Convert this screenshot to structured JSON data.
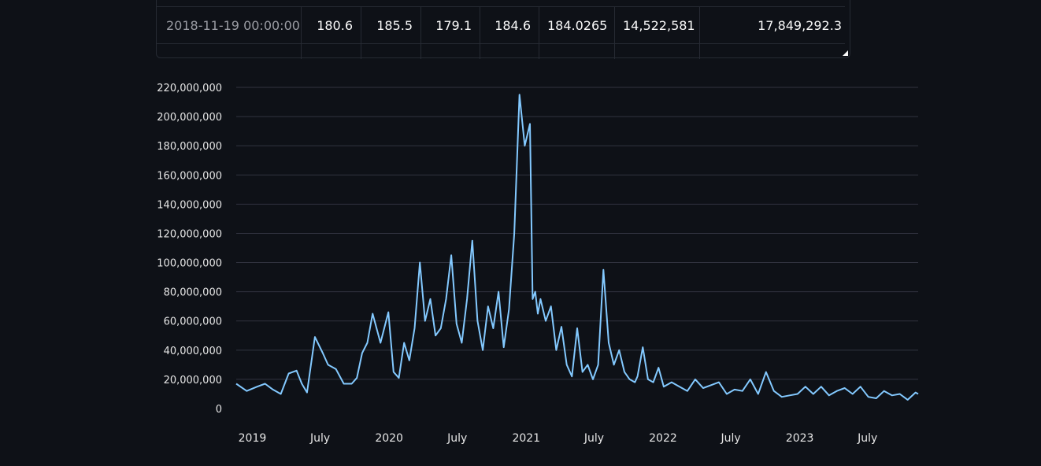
{
  "table": {
    "row": {
      "index": "2018-11-19 00:00:00",
      "cells": [
        "180.6",
        "185.5",
        "179.1",
        "184.6",
        "184.0265",
        "14,522,581",
        "17,849,292.3"
      ]
    }
  },
  "chart_data": {
    "type": "line",
    "title": "",
    "xlabel": "",
    "ylabel": "",
    "x_range": [
      "2018-11-19",
      "2023-11-13"
    ],
    "ylim": [
      0,
      220000000
    ],
    "y_ticks": [
      0,
      20000000,
      40000000,
      60000000,
      80000000,
      100000000,
      120000000,
      140000000,
      160000000,
      180000000,
      200000000,
      220000000
    ],
    "y_tick_labels": [
      "0",
      "20,000,000",
      "40,000,000",
      "60,000,000",
      "80,000,000",
      "100,000,000",
      "120,000,000",
      "140,000,000",
      "160,000,000",
      "180,000,000",
      "200,000,000",
      "220,000,000"
    ],
    "x_ticks": [
      "2019-01-01",
      "2019-07-01",
      "2020-01-01",
      "2020-07-01",
      "2021-01-01",
      "2021-07-01",
      "2022-01-01",
      "2022-07-01",
      "2023-01-01",
      "2023-07-01"
    ],
    "x_tick_labels": [
      "2019",
      "July",
      "2020",
      "July",
      "2021",
      "July",
      "2022",
      "July",
      "2023",
      "July"
    ],
    "grid": true,
    "color": "#83c9ff",
    "series": [
      {
        "x": [
          "2018-11-19",
          "2018-12-17",
          "2019-01-14",
          "2019-02-04",
          "2019-02-25",
          "2019-03-18",
          "2019-04-08",
          "2019-04-29",
          "2019-05-13",
          "2019-05-27",
          "2019-06-17",
          "2019-07-08",
          "2019-07-22",
          "2019-08-12",
          "2019-09-02",
          "2019-09-23",
          "2019-10-07",
          "2019-10-21",
          "2019-11-04",
          "2019-11-18",
          "2019-12-09",
          "2019-12-30",
          "2020-01-13",
          "2020-01-27",
          "2020-02-10",
          "2020-02-24",
          "2020-03-09",
          "2020-03-23",
          "2020-04-06",
          "2020-04-20",
          "2020-05-04",
          "2020-05-18",
          "2020-06-01",
          "2020-06-15",
          "2020-06-29",
          "2020-07-13",
          "2020-07-27",
          "2020-08-10",
          "2020-08-24",
          "2020-09-07",
          "2020-09-21",
          "2020-10-05",
          "2020-10-19",
          "2020-11-02",
          "2020-11-16",
          "2020-11-30",
          "2020-12-14",
          "2020-12-28",
          "2021-01-11",
          "2021-01-18",
          "2021-01-25",
          "2021-02-01",
          "2021-02-08",
          "2021-02-22",
          "2021-03-08",
          "2021-03-22",
          "2021-04-05",
          "2021-04-19",
          "2021-05-03",
          "2021-05-17",
          "2021-05-31",
          "2021-06-14",
          "2021-06-28",
          "2021-07-12",
          "2021-07-26",
          "2021-08-09",
          "2021-08-23",
          "2021-09-06",
          "2021-09-20",
          "2021-10-04",
          "2021-10-18",
          "2021-10-25",
          "2021-11-08",
          "2021-11-22",
          "2021-12-06",
          "2021-12-20",
          "2022-01-03",
          "2022-01-24",
          "2022-02-14",
          "2022-03-07",
          "2022-03-28",
          "2022-04-18",
          "2022-05-09",
          "2022-05-30",
          "2022-06-20",
          "2022-07-11",
          "2022-08-01",
          "2022-08-22",
          "2022-09-12",
          "2022-10-03",
          "2022-10-24",
          "2022-11-14",
          "2022-12-05",
          "2022-12-26",
          "2023-01-16",
          "2023-02-06",
          "2023-02-27",
          "2023-03-20",
          "2023-04-10",
          "2023-05-01",
          "2023-05-22",
          "2023-06-12",
          "2023-07-03",
          "2023-07-24",
          "2023-08-14",
          "2023-09-04",
          "2023-09-25",
          "2023-10-16",
          "2023-11-06",
          "2023-11-13"
        ],
        "y": [
          17000000,
          12000000,
          15000000,
          17000000,
          13000000,
          10000000,
          24000000,
          26000000,
          17000000,
          11000000,
          49000000,
          38000000,
          30000000,
          27000000,
          17000000,
          17000000,
          21000000,
          38000000,
          45000000,
          65000000,
          45000000,
          66000000,
          25000000,
          21000000,
          45000000,
          33000000,
          55000000,
          100000000,
          60000000,
          75000000,
          50000000,
          55000000,
          75000000,
          105000000,
          58000000,
          45000000,
          75000000,
          115000000,
          60000000,
          40000000,
          70000000,
          55000000,
          80000000,
          42000000,
          68000000,
          120000000,
          215000000,
          180000000,
          195000000,
          75000000,
          80000000,
          65000000,
          75000000,
          60000000,
          70000000,
          40000000,
          56000000,
          30000000,
          22000000,
          55000000,
          25000000,
          30000000,
          20000000,
          30000000,
          95000000,
          45000000,
          30000000,
          40000000,
          25000000,
          20000000,
          18000000,
          22000000,
          42000000,
          20000000,
          18000000,
          28000000,
          15000000,
          18000000,
          15000000,
          12000000,
          20000000,
          14000000,
          16000000,
          18000000,
          10000000,
          13000000,
          12000000,
          20000000,
          10000000,
          25000000,
          12000000,
          8000000,
          9000000,
          10000000,
          15000000,
          10000000,
          15000000,
          9000000,
          12000000,
          14000000,
          10000000,
          15000000,
          8000000,
          7000000,
          12000000,
          9000000,
          10000000,
          6000000,
          11000000,
          10000000
        ]
      }
    ]
  }
}
